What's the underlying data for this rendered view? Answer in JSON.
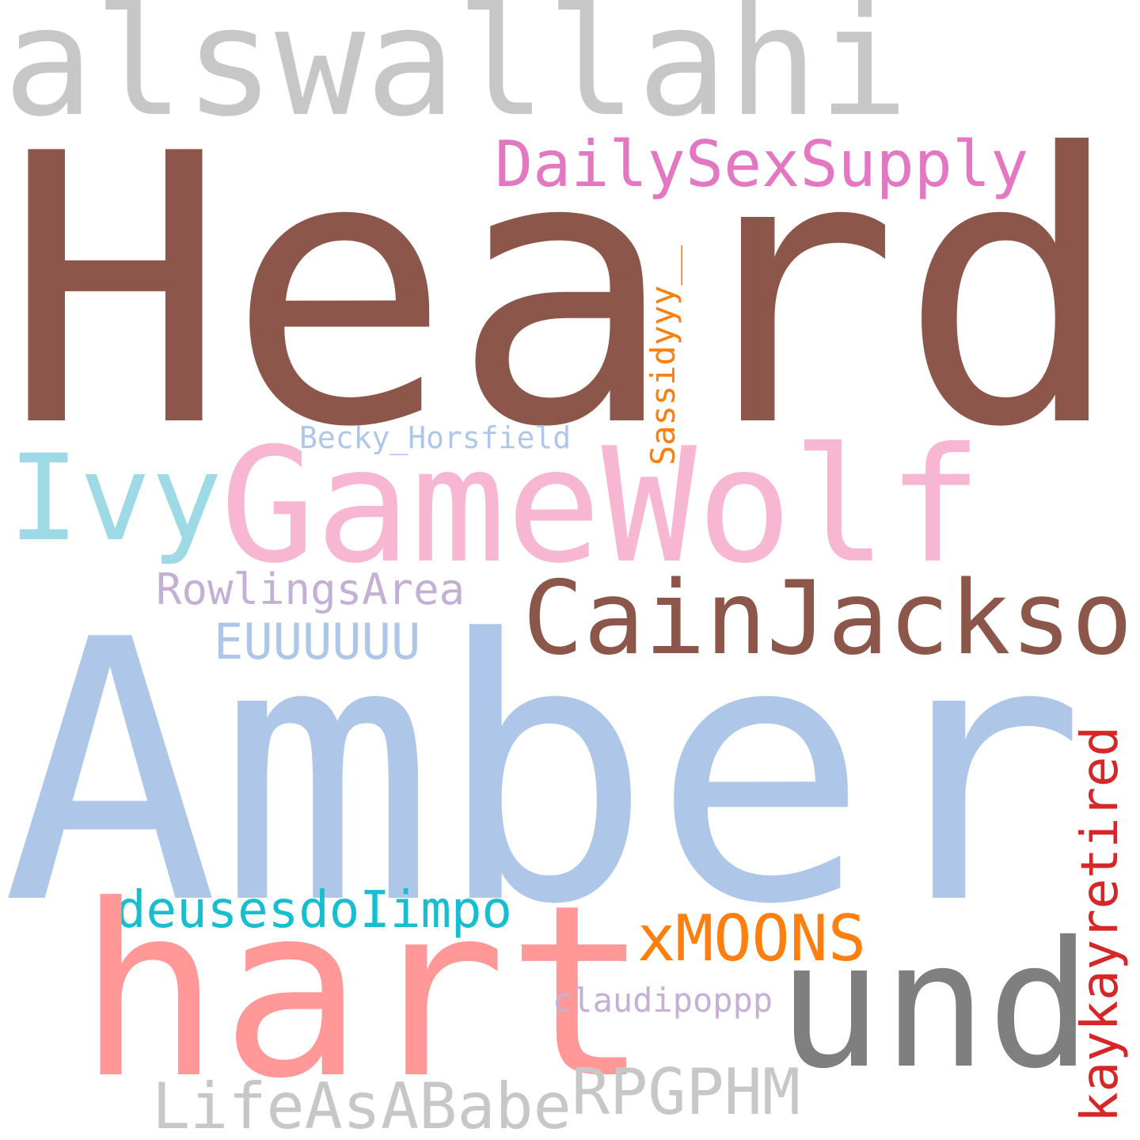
{
  "words": {
    "alswallahi": {
      "text": "alswallahi",
      "color": "#c7c7c7"
    },
    "heard": {
      "text": "Heard",
      "color": "#8c564b"
    },
    "dailysexsupply": {
      "text": "DailySexSupply",
      "color": "#e377c2"
    },
    "sassidyyy": {
      "text": "Sassidyyy__",
      "color": "#ff7f0e"
    },
    "becky_horsfield": {
      "text": "Becky_Horsfield",
      "color": "#aec7e8"
    },
    "ivy": {
      "text": "Ivy",
      "color": "#9edae5"
    },
    "gamewolf": {
      "text": "GameWolf",
      "color": "#f7b6d2"
    },
    "rowlingsarea": {
      "text": "RowlingsArea",
      "color": "#c5b0d5"
    },
    "cainjackson": {
      "text": "CainJackson",
      "color": "#8c564b"
    },
    "euuuuuu": {
      "text": "EUUUUUU",
      "color": "#aec7e8"
    },
    "amber": {
      "text": "Amber",
      "color": "#aec7e8"
    },
    "kaykayretired": {
      "text": "kaykayretired",
      "color": "#d62728"
    },
    "deusesdolimpo": {
      "text": "deusesdoIimpo",
      "color": "#17becf"
    },
    "xmoons": {
      "text": "xMOONS",
      "color": "#ff7f0e"
    },
    "hart": {
      "text": "hart",
      "color": "#ff9896"
    },
    "und": {
      "text": "und",
      "color": "#7f7f7f"
    },
    "claudipoppp": {
      "text": "claudipoppp",
      "color": "#c5b0d5"
    },
    "rpgphm": {
      "text": "RPGPHM",
      "color": "#c7c7c7"
    },
    "lifeasababe": {
      "text": "LifeAsABabe",
      "color": "#c7c7c7"
    }
  }
}
